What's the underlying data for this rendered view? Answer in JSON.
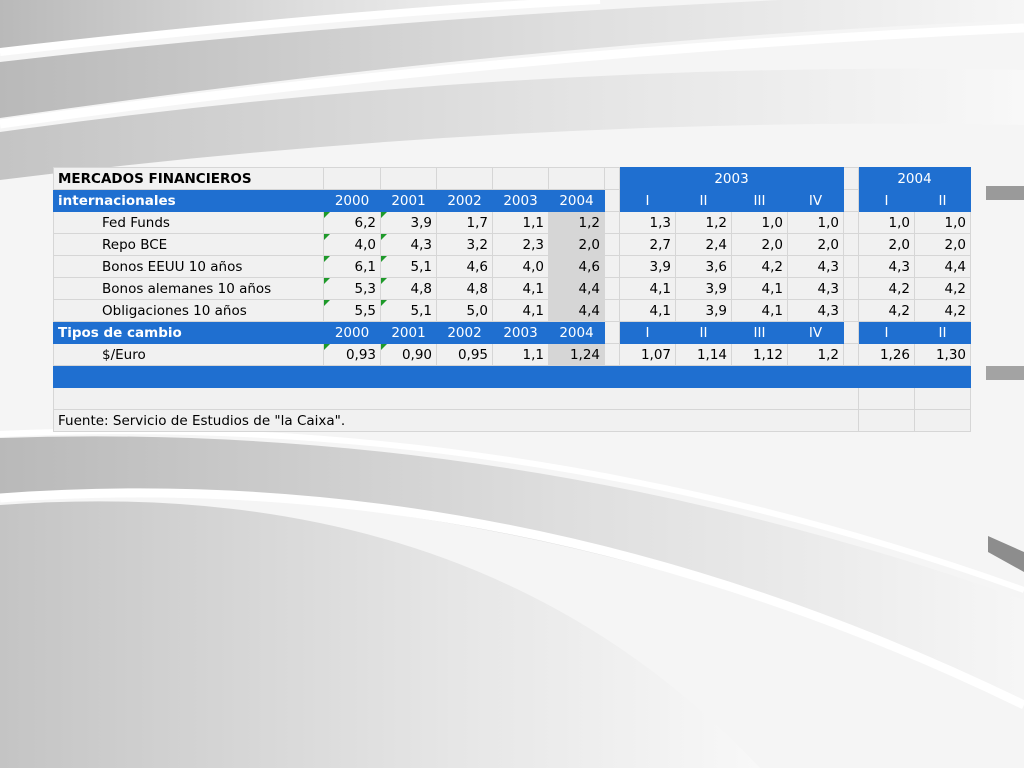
{
  "table": {
    "title": "MERCADOS FINANCIEROS",
    "section1": {
      "label": "internacionales",
      "year_cols": [
        "2000",
        "2001",
        "2002",
        "2003",
        "2004"
      ],
      "group_years": [
        "2003",
        "2004"
      ],
      "quarters_2003": [
        "I",
        "II",
        "III",
        "IV"
      ],
      "quarters_2004": [
        "I",
        "II"
      ],
      "rows": [
        {
          "label": "Fed Funds",
          "annual": [
            "6,2",
            "3,9",
            "1,7",
            "1,1",
            "1,2"
          ],
          "q2003": [
            "1,3",
            "1,2",
            "1,0",
            "1,0"
          ],
          "q2004": [
            "1,0",
            "1,0"
          ]
        },
        {
          "label": "Repo BCE",
          "annual": [
            "4,0",
            "4,3",
            "3,2",
            "2,3",
            "2,0"
          ],
          "q2003": [
            "2,7",
            "2,4",
            "2,0",
            "2,0"
          ],
          "q2004": [
            "2,0",
            "2,0"
          ]
        },
        {
          "label": "Bonos EEUU 10 años",
          "annual": [
            "6,1",
            "5,1",
            "4,6",
            "4,0",
            "4,6"
          ],
          "q2003": [
            "3,9",
            "3,6",
            "4,2",
            "4,3"
          ],
          "q2004": [
            "4,3",
            "4,4"
          ]
        },
        {
          "label": "Bonos alemanes 10 años",
          "annual": [
            "5,3",
            "4,8",
            "4,8",
            "4,1",
            "4,4"
          ],
          "q2003": [
            "4,1",
            "3,9",
            "4,1",
            "4,3"
          ],
          "q2004": [
            "4,2",
            "4,2"
          ]
        },
        {
          "label": "Obligaciones 10 años",
          "annual": [
            "5,5",
            "5,1",
            "5,0",
            "4,1",
            "4,4"
          ],
          "q2003": [
            "4,1",
            "3,9",
            "4,1",
            "4,3"
          ],
          "q2004": [
            "4,2",
            "4,2"
          ]
        }
      ]
    },
    "section2": {
      "label": "Tipos de cambio",
      "year_cols": [
        "2000",
        "2001",
        "2002",
        "2003",
        "2004"
      ],
      "quarters_2003": [
        "I",
        "II",
        "III",
        "IV"
      ],
      "quarters_2004": [
        "I",
        "II"
      ],
      "rows": [
        {
          "label": "$/Euro",
          "annual": [
            "0,93",
            "0,90",
            "0,95",
            "1,1",
            "1,24"
          ],
          "q2003": [
            "1,07",
            "1,14",
            "1,12",
            "1,2"
          ],
          "q2004": [
            "1,26",
            "1,30"
          ]
        }
      ]
    },
    "source": "Fuente: Servicio de Estudios de \"la Caixa\"."
  }
}
